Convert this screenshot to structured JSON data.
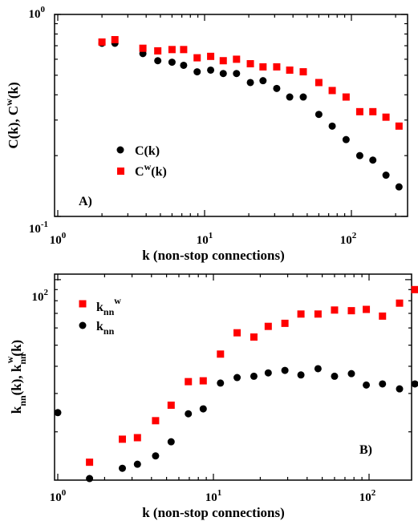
{
  "chart_data": [
    {
      "type": "scatter",
      "panel_label": "A)",
      "xlabel": "k  (non-stop connections)",
      "ylabel": "C(k), C^w(k)",
      "x_scale": "log",
      "y_scale": "log",
      "xlim": [
        1,
        250
      ],
      "ylim": [
        0.1,
        1
      ],
      "x_ticks": [
        {
          "value": 1,
          "base": "10",
          "exp": "0"
        },
        {
          "value": 10,
          "base": "10",
          "exp": "1"
        },
        {
          "value": 100,
          "base": "10",
          "exp": "2"
        }
      ],
      "y_ticks": [
        {
          "value": 0.1,
          "base": "10",
          "exp": "-1"
        },
        {
          "value": 1,
          "base": "10",
          "exp": "0"
        }
      ],
      "legend_position": "center-left",
      "series": [
        {
          "name": "C(k)",
          "legend_base": "C(k)",
          "legend_sup": "",
          "legend_after": "",
          "marker": "circle",
          "color": "#000000",
          "points": [
            [
              2.0,
              0.72
            ],
            [
              2.45,
              0.72
            ],
            [
              3.8,
              0.64
            ],
            [
              4.8,
              0.59
            ],
            [
              6.0,
              0.58
            ],
            [
              7.2,
              0.56
            ],
            [
              8.9,
              0.52
            ],
            [
              11,
              0.53
            ],
            [
              13.4,
              0.51
            ],
            [
              16.5,
              0.51
            ],
            [
              20.5,
              0.46
            ],
            [
              25,
              0.47
            ],
            [
              31,
              0.43
            ],
            [
              38,
              0.39
            ],
            [
              47,
              0.39
            ],
            [
              60,
              0.32
            ],
            [
              74,
              0.28
            ],
            [
              92,
              0.24
            ],
            [
              114,
              0.2
            ],
            [
              140,
              0.19
            ],
            [
              172,
              0.16
            ],
            [
              211,
              0.14
            ]
          ]
        },
        {
          "name": "C^w(k)",
          "legend_base": "C",
          "legend_sup": "w",
          "legend_after": "(k)",
          "marker": "square",
          "color": "#ff0000",
          "points": [
            [
              2.0,
              0.73
            ],
            [
              2.45,
              0.75
            ],
            [
              3.8,
              0.68
            ],
            [
              4.8,
              0.66
            ],
            [
              6.0,
              0.67
            ],
            [
              7.2,
              0.67
            ],
            [
              8.9,
              0.61
            ],
            [
              11,
              0.62
            ],
            [
              13.4,
              0.59
            ],
            [
              16.5,
              0.6
            ],
            [
              20.5,
              0.57
            ],
            [
              25,
              0.55
            ],
            [
              31,
              0.55
            ],
            [
              38,
              0.53
            ],
            [
              47,
              0.52
            ],
            [
              60,
              0.46
            ],
            [
              74,
              0.42
            ],
            [
              92,
              0.39
            ],
            [
              114,
              0.33
            ],
            [
              140,
              0.33
            ],
            [
              172,
              0.31
            ],
            [
              211,
              0.28
            ]
          ]
        }
      ]
    },
    {
      "type": "scatter",
      "panel_label": "B)",
      "xlabel": "k  (non-stop connections)",
      "ylabel": "k_nn(k), k_nn^w(k)",
      "x_scale": "log",
      "y_scale": "log",
      "xlim": [
        1,
        210
      ],
      "ylim": [
        12,
        106
      ],
      "x_ticks": [
        {
          "value": 1,
          "base": "10",
          "exp": "0"
        },
        {
          "value": 10,
          "base": "10",
          "exp": "1"
        },
        {
          "value": 100,
          "base": "10",
          "exp": "2"
        }
      ],
      "y_ticks": [
        {
          "value": 100,
          "base": "10",
          "exp": "2"
        }
      ],
      "legend_position": "top-left",
      "series": [
        {
          "name": "k_nn^w",
          "legend_base": "k",
          "legend_sub": "nn",
          "legend_sup": "w",
          "marker": "square",
          "color": "#ff0000",
          "points": [
            [
              1.6,
              14.5
            ],
            [
              2.6,
              18.5
            ],
            [
              3.25,
              18.8
            ],
            [
              4.25,
              22.5
            ],
            [
              5.35,
              26.5
            ],
            [
              6.9,
              34
            ],
            [
              8.6,
              34.3
            ],
            [
              11.1,
              45.5
            ],
            [
              14.2,
              57
            ],
            [
              18.2,
              54.5
            ],
            [
              22.5,
              61
            ],
            [
              28.8,
              63
            ],
            [
              36.5,
              69.5
            ],
            [
              47,
              69.5
            ],
            [
              60,
              72.5
            ],
            [
              77,
              72
            ],
            [
              96,
              73
            ],
            [
              122,
              68
            ],
            [
              157,
              78
            ],
            [
              197,
              90
            ]
          ]
        },
        {
          "name": "k_nn",
          "legend_base": "k",
          "legend_sub": "nn",
          "legend_sup": "",
          "marker": "circle",
          "color": "#000000",
          "points": [
            [
              1.0,
              24.5
            ],
            [
              1.6,
              12.2
            ],
            [
              2.6,
              13.6
            ],
            [
              3.25,
              14.2
            ],
            [
              4.25,
              15.5
            ],
            [
              5.35,
              18
            ],
            [
              6.9,
              24.2
            ],
            [
              8.6,
              25.5
            ],
            [
              11.1,
              33.5
            ],
            [
              14.2,
              35.5
            ],
            [
              18.2,
              36
            ],
            [
              22.5,
              37.3
            ],
            [
              28.8,
              38.3
            ],
            [
              36.5,
              36.5
            ],
            [
              47,
              39
            ],
            [
              60,
              36
            ],
            [
              77,
              37
            ],
            [
              96,
              32.8
            ],
            [
              122,
              33.2
            ],
            [
              157,
              31.5
            ],
            [
              197,
              33.2
            ]
          ]
        }
      ]
    }
  ]
}
